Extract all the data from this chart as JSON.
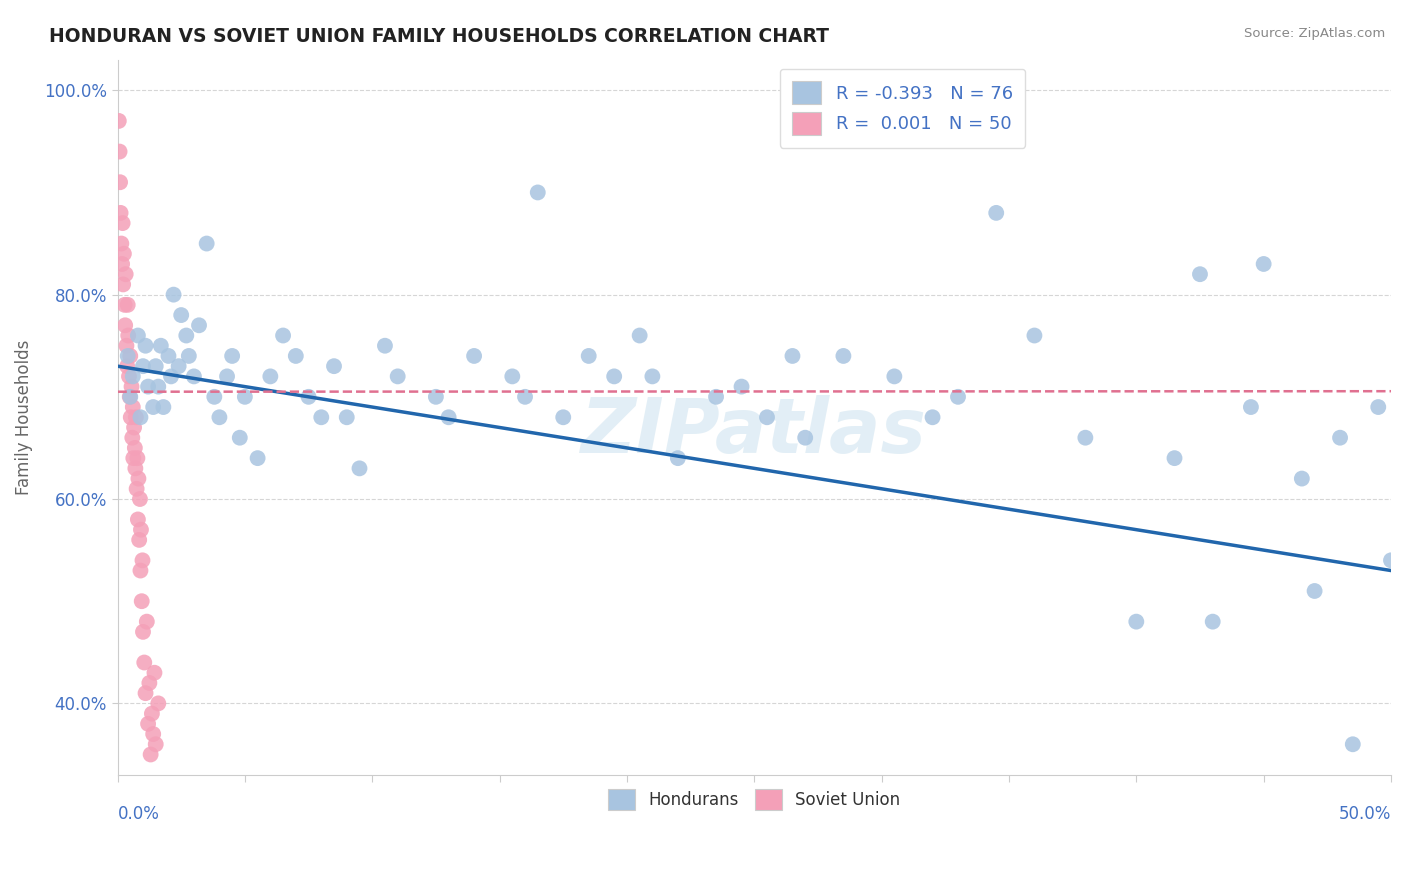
{
  "title": "HONDURAN VS SOVIET UNION FAMILY HOUSEHOLDS CORRELATION CHART",
  "source": "Source: ZipAtlas.com",
  "ylabel": "Family Households",
  "xlim": [
    0.0,
    50.0
  ],
  "ylim": [
    33.0,
    103.0
  ],
  "yticks": [
    40.0,
    60.0,
    80.0,
    100.0
  ],
  "honduran_color": "#a8c4e0",
  "soviet_color": "#f4a0b8",
  "honduran_line_color": "#2166ac",
  "soviet_line_color": "#e07090",
  "watermark": "ZIPatlas",
  "hondurans_x": [
    0.4,
    0.5,
    0.6,
    0.8,
    0.9,
    1.0,
    1.1,
    1.2,
    1.4,
    1.5,
    1.6,
    1.7,
    1.8,
    2.0,
    2.1,
    2.2,
    2.4,
    2.5,
    2.7,
    2.8,
    3.0,
    3.2,
    3.5,
    3.8,
    4.0,
    4.3,
    4.5,
    4.8,
    5.0,
    5.5,
    6.0,
    6.5,
    7.0,
    7.5,
    8.0,
    8.5,
    9.0,
    9.5,
    10.5,
    11.0,
    12.5,
    13.0,
    14.0,
    15.5,
    16.0,
    17.5,
    18.5,
    19.5,
    20.5,
    22.0,
    23.5,
    25.5,
    27.0,
    28.5,
    30.5,
    33.0,
    36.0,
    40.0,
    43.0,
    45.0,
    47.0,
    48.0,
    49.5,
    21.0,
    24.5,
    32.0,
    38.0,
    41.5,
    44.5,
    46.5,
    48.5,
    26.5,
    34.5,
    42.5,
    50.0,
    16.5
  ],
  "hondurans_y": [
    74.0,
    70.0,
    72.0,
    76.0,
    68.0,
    73.0,
    75.0,
    71.0,
    69.0,
    73.0,
    71.0,
    75.0,
    69.0,
    74.0,
    72.0,
    80.0,
    73.0,
    78.0,
    76.0,
    74.0,
    72.0,
    77.0,
    85.0,
    70.0,
    68.0,
    72.0,
    74.0,
    66.0,
    70.0,
    64.0,
    72.0,
    76.0,
    74.0,
    70.0,
    68.0,
    73.0,
    68.0,
    63.0,
    75.0,
    72.0,
    70.0,
    68.0,
    74.0,
    72.0,
    70.0,
    68.0,
    74.0,
    72.0,
    76.0,
    64.0,
    70.0,
    68.0,
    66.0,
    74.0,
    72.0,
    70.0,
    76.0,
    48.0,
    48.0,
    83.0,
    51.0,
    66.0,
    69.0,
    72.0,
    71.0,
    68.0,
    66.0,
    64.0,
    69.0,
    62.0,
    36.0,
    74.0,
    88.0,
    82.0,
    54.0,
    90.0
  ],
  "soviets_x": [
    0.05,
    0.08,
    0.1,
    0.12,
    0.15,
    0.18,
    0.2,
    0.22,
    0.25,
    0.28,
    0.3,
    0.32,
    0.35,
    0.38,
    0.4,
    0.42,
    0.45,
    0.48,
    0.5,
    0.52,
    0.55,
    0.58,
    0.6,
    0.62,
    0.65,
    0.68,
    0.7,
    0.72,
    0.75,
    0.78,
    0.8,
    0.82,
    0.85,
    0.88,
    0.9,
    0.92,
    0.95,
    0.98,
    1.0,
    1.05,
    1.1,
    1.15,
    1.2,
    1.25,
    1.3,
    1.35,
    1.4,
    1.45,
    1.5,
    1.6
  ],
  "soviets_y": [
    97.0,
    94.0,
    91.0,
    88.0,
    85.0,
    83.0,
    87.0,
    81.0,
    84.0,
    79.0,
    77.0,
    82.0,
    75.0,
    73.0,
    79.0,
    76.0,
    72.0,
    70.0,
    74.0,
    68.0,
    71.0,
    66.0,
    69.0,
    64.0,
    67.0,
    65.0,
    63.0,
    68.0,
    61.0,
    64.0,
    58.0,
    62.0,
    56.0,
    60.0,
    53.0,
    57.0,
    50.0,
    54.0,
    47.0,
    44.0,
    41.0,
    48.0,
    38.0,
    42.0,
    35.0,
    39.0,
    37.0,
    43.0,
    36.0,
    40.0
  ]
}
